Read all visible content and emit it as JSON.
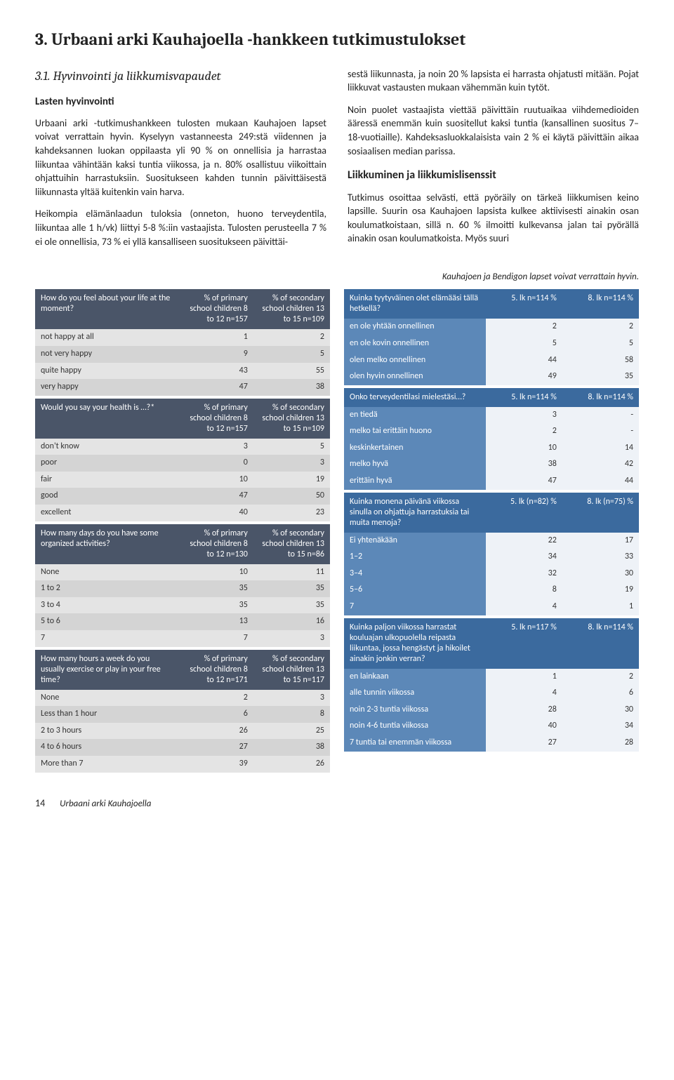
{
  "heading": "3. Urbaani arki Kauhajoella -hankkeen tutkimustulokset",
  "section_number": "3.1. Hyvinvointi ja liikkumisvapaudet",
  "subhead": "Lasten hyvinvointi",
  "left_paragraphs": [
    "Urbaani arki -tutkimushankkeen tulosten mukaan Kauhajoen lapset voivat verrattain hyvin. Kyselyyn vastanneesta 249:stä viidennen ja kahdeksannen luokan oppilaasta yli 90 % on onnellisia ja harrastaa liikuntaa vähintään kaksi tuntia viikossa, ja n. 80% osallistuu viikoittain ohjattuihin harrastuksiin. Suositukseen kahden tunnin päivittäisestä liikunnasta yltää kuitenkin vain harva.",
    "Heikompia elämänlaadun tuloksia (onneton, huono terveydentila, liikuntaa alle 1 h/vk) liittyi 5-8 %:iin vastaajista. Tulosten perusteella 7 % ei ole onnellisia, 73 % ei yllä kansalliseen suositukseen päivittäi-"
  ],
  "right_paragraphs_top": [
    "sestä liikunnasta, ja noin 20 % lapsista ei harrasta ohjatusti mitään. Pojat liikkuvat vastausten mukaan vähemmän kuin tytöt.",
    "Noin puolet vastaajista viettää päivittäin ruutuaikaa viihdemedioiden ääressä enemmän kuin suositellut kaksi tuntia (kansallinen suositus 7–18-vuotiaille). Kahdeksasluokkalaisista vain 2 % ei käytä päivittäin aikaa sosiaalisen median parissa."
  ],
  "right_head": "Liikkuminen ja liikkumislisenssit",
  "right_paragraphs_bottom": [
    "Tutkimus osoittaa selvästi, että pyöräily on tärkeä liikkumisen keino lapsille. Suurin osa Kauhajoen lapsista kulkee aktiivisesti ainakin osan koulumatkoistaan, sillä n. 60 % ilmoitti kulkevansa jalan tai pyörällä ainakin osan koulumatkoista. Myös suuri"
  ],
  "caption": "Kauhajoen ja Bendigon lapset voivat verrattain hyvin.",
  "left_tables": [
    {
      "headers": [
        "How do you feel about your life at the moment?",
        "% of primary school children 8 to 12 n=157",
        "% of secondary school children 13 to 15 n=109"
      ],
      "rows": [
        [
          "not happy at all",
          "1",
          "2"
        ],
        [
          "not very happy",
          "9",
          "5"
        ],
        [
          "quite happy",
          "43",
          "55"
        ],
        [
          "very happy",
          "47",
          "38"
        ]
      ]
    },
    {
      "headers": [
        "Would you say your health is …?*",
        "% of primary school children 8 to 12 n=157",
        "% of secondary school children 13 to 15 n=109"
      ],
      "rows": [
        [
          "don't know",
          "3",
          "5"
        ],
        [
          "poor",
          "0",
          "3"
        ],
        [
          "fair",
          "10",
          "19"
        ],
        [
          "good",
          "47",
          "50"
        ],
        [
          "excellent",
          "40",
          "23"
        ]
      ]
    },
    {
      "headers": [
        "How many days do you have some organized activities?",
        "% of primary school children 8 to 12 n=130",
        "% of secondary school children 13 to 15 n=86"
      ],
      "rows": [
        [
          "None",
          "10",
          "11"
        ],
        [
          "1 to 2",
          "35",
          "35"
        ],
        [
          "3 to 4",
          "35",
          "35"
        ],
        [
          "5 to 6",
          "13",
          "16"
        ],
        [
          "7",
          "7",
          "3"
        ]
      ]
    },
    {
      "headers": [
        "How many hours a week do you usually exercise or play in your free time?",
        "% of primary school children 8 to 12 n=171",
        "% of secondary school children 13 to 15 n=117"
      ],
      "rows": [
        [
          "None",
          "2",
          "3"
        ],
        [
          "Less than 1 hour",
          "6",
          "8"
        ],
        [
          "2 to 3 hours",
          "26",
          "25"
        ],
        [
          "4 to 6 hours",
          "27",
          "38"
        ],
        [
          "More than 7",
          "39",
          "26"
        ]
      ]
    }
  ],
  "right_tables": [
    {
      "headers": [
        "Kuinka tyytyväinen olet elämääsi tällä hetkellä?",
        "5. lk n=114 %",
        "8. lk n=114 %"
      ],
      "rows": [
        [
          "en ole yhtään onnellinen",
          "2",
          "2"
        ],
        [
          "en ole kovin onnellinen",
          "5",
          "5"
        ],
        [
          "olen melko onnellinen",
          "44",
          "58"
        ],
        [
          "olen hyvin onnellinen",
          "49",
          "35"
        ]
      ]
    },
    {
      "headers": [
        "Onko terveydentilasi mielestäsi…?",
        "5. lk n=114 %",
        "8. lk n=114 %"
      ],
      "rows": [
        [
          "en tiedä",
          "3",
          "-"
        ],
        [
          "melko tai erittäin huono",
          "2",
          "-"
        ],
        [
          "keskinkertainen",
          "10",
          "14"
        ],
        [
          "melko hyvä",
          "38",
          "42"
        ],
        [
          "erittäin hyvä",
          "47",
          "44"
        ]
      ]
    },
    {
      "headers": [
        "Kuinka monena päivänä viikossa sinulla on ohjattuja harrastuksia tai muita menoja?",
        "5. lk (n=82) %",
        "8. lk (n=75) %"
      ],
      "rows": [
        [
          "Ei yhtenäkään",
          "22",
          "17"
        ],
        [
          "1–2",
          "34",
          "33"
        ],
        [
          "3–4",
          "32",
          "30"
        ],
        [
          "5–6",
          "8",
          "19"
        ],
        [
          "7",
          "4",
          "1"
        ]
      ]
    },
    {
      "headers": [
        "Kuinka paljon viikossa harrastat kouluajan ulkopuolella reipasta liikuntaa, jossa hengästyt ja hikoilet ainakin jonkin verran?",
        "5. lk n=117 %",
        "8. lk n=114 %"
      ],
      "rows": [
        [
          "en lainkaan",
          "1",
          "2"
        ],
        [
          "alle tunnin viikossa",
          "4",
          "6"
        ],
        [
          "noin 2-3 tuntia viikossa",
          "28",
          "30"
        ],
        [
          "noin 4-6 tuntia viikossa",
          "40",
          "34"
        ],
        [
          "7 tuntia tai enemmän viikossa",
          "27",
          "28"
        ]
      ]
    }
  ],
  "footer": {
    "page": "14",
    "title": "Urbaani arki Kauhajoella"
  },
  "colors": {
    "left_header_bg": "#4a5568",
    "left_row_bg": "#e4e4e4",
    "left_row_alt_bg": "#d4d4d4",
    "right_header_bg": "#3b6a9e",
    "right_label_bg": "#5c88b8",
    "right_num_bg": "#eef2f7"
  }
}
